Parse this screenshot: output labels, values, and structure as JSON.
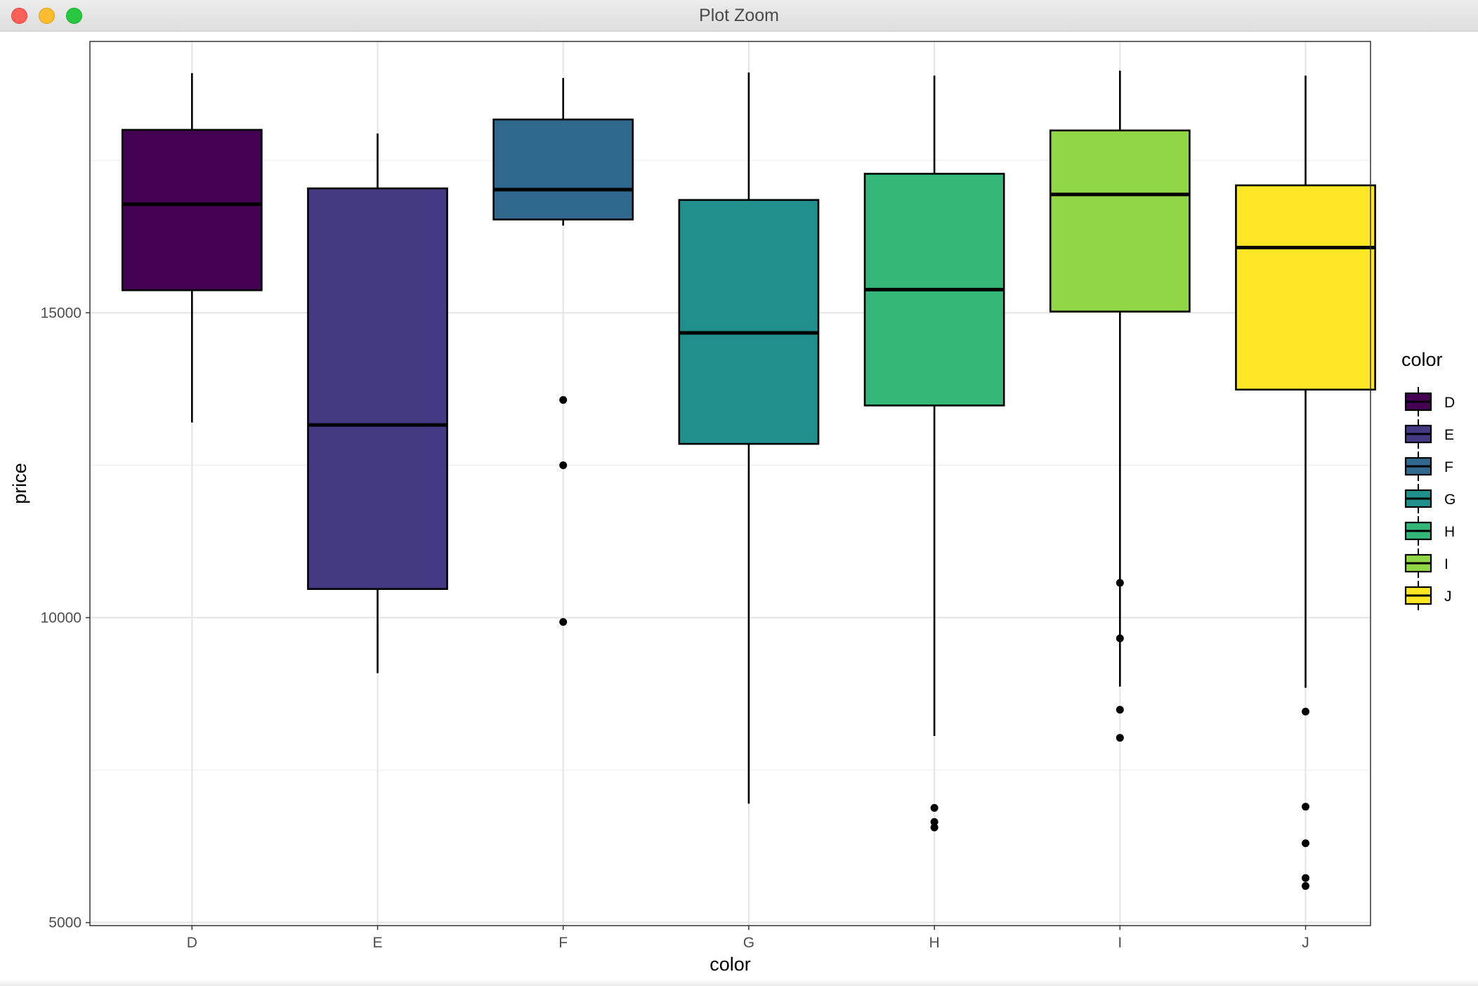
{
  "window": {
    "title": "Plot Zoom"
  },
  "chart_data": {
    "type": "boxplot",
    "xlabel": "color",
    "ylabel": "price",
    "ylim": [
      4950,
      19450
    ],
    "y_ticks": [
      5000,
      10000,
      15000
    ],
    "y_tick_labels": [
      "5000",
      "10000",
      "15000"
    ],
    "grid": true,
    "legend": {
      "title": "color",
      "position": "right"
    },
    "categories": [
      "D",
      "E",
      "F",
      "G",
      "H",
      "I",
      "J"
    ],
    "colors": {
      "D": "#440154",
      "E": "#443A83",
      "F": "#31688E",
      "G": "#21908C",
      "H": "#35B779",
      "I": "#8FD744",
      "J": "#FDE725"
    },
    "boxes": [
      {
        "category": "D",
        "whisker_low": 13200,
        "q1": 15370,
        "median": 16780,
        "q3": 18000,
        "whisker_high": 18930,
        "outliers": []
      },
      {
        "category": "E",
        "whisker_low": 9090,
        "q1": 10470,
        "median": 13160,
        "q3": 17040,
        "whisker_high": 17940,
        "outliers": []
      },
      {
        "category": "F",
        "whisker_low": 16430,
        "q1": 16530,
        "median": 17020,
        "q3": 18170,
        "whisker_high": 18850,
        "outliers": [
          13570,
          12500,
          9930
        ]
      },
      {
        "category": "G",
        "whisker_low": 6950,
        "q1": 12850,
        "median": 14670,
        "q3": 16850,
        "whisker_high": 18940,
        "outliers": []
      },
      {
        "category": "H",
        "whisker_low": 8060,
        "q1": 13480,
        "median": 15380,
        "q3": 17280,
        "whisker_high": 18890,
        "outliers": [
          6880,
          6650,
          6560
        ]
      },
      {
        "category": "I",
        "whisker_low": 8870,
        "q1": 15020,
        "median": 16940,
        "q3": 17990,
        "whisker_high": 18970,
        "outliers": [
          10570,
          9660,
          8490,
          8030
        ]
      },
      {
        "category": "J",
        "whisker_low": 8850,
        "q1": 13740,
        "median": 16070,
        "q3": 17090,
        "whisker_high": 18890,
        "outliers": [
          8460,
          6900,
          6300,
          5730,
          5600
        ]
      }
    ]
  }
}
